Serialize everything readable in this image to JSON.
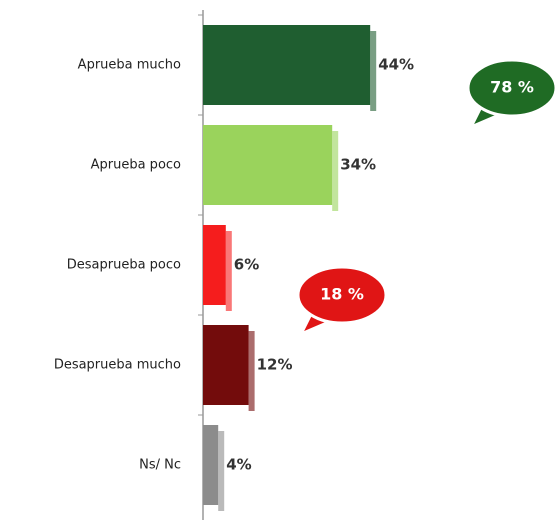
{
  "chart_data": {
    "type": "bar",
    "orientation": "horizontal",
    "categories": [
      "Aprueba mucho",
      "Aprueba poco",
      "Desaprueba poco",
      "Desaprueba mucho",
      "Ns/ Nc"
    ],
    "values": [
      44,
      34,
      6,
      12,
      4
    ],
    "value_labels": [
      "44%",
      "34%",
      "6%",
      "12%",
      "4%"
    ],
    "colors": [
      "#1f5e30",
      "#9ad35c",
      "#f51d1d",
      "#730c0c",
      "#8c8c8c"
    ],
    "annotations": [
      {
        "text": "78 %",
        "color": "#1f6b24"
      },
      {
        "text": "18 %",
        "color": "#e01515"
      }
    ]
  }
}
